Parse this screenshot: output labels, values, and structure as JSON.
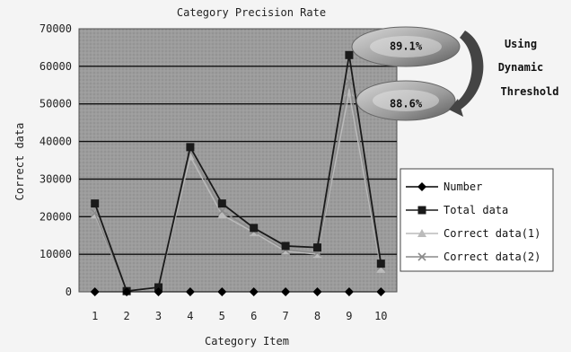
{
  "chart_data": {
    "type": "line",
    "title": "Category Precision Rate",
    "xlabel": "Category Item",
    "ylabel": "Correct data",
    "categories": [
      "1",
      "2",
      "3",
      "4",
      "5",
      "6",
      "7",
      "8",
      "9",
      "10"
    ],
    "ylim": [
      0,
      70000
    ],
    "yticks": [
      "0",
      "10000",
      "20000",
      "30000",
      "40000",
      "50000",
      "60000",
      "70000"
    ],
    "grid": true,
    "legend_position": "right",
    "series": [
      {
        "name": "Number",
        "marker": "diamond",
        "color": "#000000",
        "values": [
          0,
          0,
          0,
          0,
          0,
          0,
          0,
          0,
          0,
          0
        ]
      },
      {
        "name": "Total data",
        "marker": "square",
        "color": "#1a1a1a",
        "values": [
          23500,
          200,
          1200,
          38500,
          23500,
          17000,
          12200,
          11800,
          63000,
          7500
        ]
      },
      {
        "name": "Correct data(1)",
        "marker": "triangle",
        "color": "#bbbbbb",
        "values": [
          20500,
          150,
          1000,
          36000,
          20500,
          15800,
          10800,
          10000,
          53000,
          6000
        ]
      },
      {
        "name": "Correct data(2)",
        "marker": "x",
        "color": "#8a8a8a",
        "values": [
          21000,
          150,
          1100,
          37500,
          21500,
          16200,
          11200,
          10400,
          56000,
          6800
        ]
      }
    ],
    "annotations": {
      "upper_value": "89.1%",
      "lower_value": "88.6%",
      "caption_lines": [
        "Using",
        "Dynamic",
        "Threshold"
      ]
    }
  }
}
